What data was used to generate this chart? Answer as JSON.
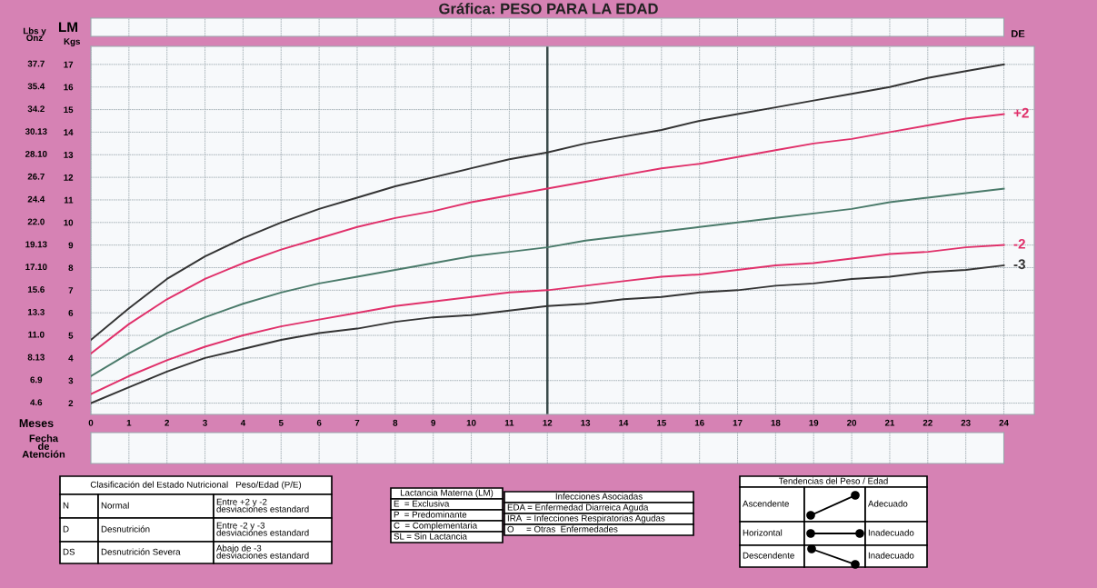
{
  "chart_data": {
    "type": "line",
    "title": "Gráfica: PESO PARA LA EDAD",
    "x": [
      0,
      1,
      2,
      3,
      4,
      5,
      6,
      7,
      8,
      9,
      10,
      11,
      12,
      13,
      14,
      15,
      16,
      17,
      18,
      19,
      20,
      21,
      22,
      23,
      24
    ],
    "series": [
      {
        "color": "#333333",
        "values": [
          4.8,
          6.2,
          7.5,
          8.5,
          9.3,
          10.0,
          10.6,
          11.1,
          11.6,
          12.0,
          12.4,
          12.8,
          13.1,
          13.5,
          13.8,
          14.1,
          14.5,
          14.8,
          15.1,
          15.4,
          15.7,
          16.0,
          16.4,
          16.7,
          17.0
        ]
      },
      {
        "name": "+2",
        "color": "#e0306a",
        "values": [
          4.2,
          5.5,
          6.6,
          7.5,
          8.2,
          8.8,
          9.3,
          9.8,
          10.2,
          10.5,
          10.9,
          11.2,
          11.5,
          11.8,
          12.1,
          12.4,
          12.6,
          12.9,
          13.2,
          13.5,
          13.7,
          14.0,
          14.3,
          14.6,
          14.8
        ]
      },
      {
        "color": "#4a7a6a",
        "values": [
          3.2,
          4.2,
          5.1,
          5.8,
          6.4,
          6.9,
          7.3,
          7.6,
          7.9,
          8.2,
          8.5,
          8.7,
          8.9,
          9.2,
          9.4,
          9.6,
          9.8,
          10.0,
          10.2,
          10.4,
          10.6,
          10.9,
          11.1,
          11.3,
          11.5
        ]
      },
      {
        "name": "-2",
        "color": "#e0306a",
        "values": [
          2.4,
          3.2,
          3.9,
          4.5,
          5.0,
          5.4,
          5.7,
          6.0,
          6.3,
          6.5,
          6.7,
          6.9,
          7.0,
          7.2,
          7.4,
          7.6,
          7.7,
          7.9,
          8.1,
          8.2,
          8.4,
          8.6,
          8.7,
          8.9,
          9.0
        ]
      },
      {
        "name": "-3",
        "color": "#333333",
        "values": [
          2.0,
          2.7,
          3.4,
          4.0,
          4.4,
          4.8,
          5.1,
          5.3,
          5.6,
          5.8,
          5.9,
          6.1,
          6.3,
          6.4,
          6.6,
          6.7,
          6.9,
          7.0,
          7.2,
          7.3,
          7.5,
          7.6,
          7.8,
          7.9,
          8.1
        ]
      }
    ],
    "xlabel": "Meses",
    "ylabel": "Kgs",
    "xlim": [
      0,
      24.8
    ],
    "xticks": [
      0,
      1,
      2,
      3,
      4,
      5,
      6,
      7,
      8,
      9,
      10,
      11,
      12,
      13,
      14,
      15,
      16,
      17,
      18,
      19,
      20,
      21,
      22,
      23,
      24
    ],
    "ylim": [
      1.5,
      17.8
    ],
    "yticks": [
      2,
      3,
      4,
      5,
      6,
      7,
      8,
      9,
      10,
      11,
      12,
      13,
      14,
      15,
      16,
      17
    ],
    "ref_lines": [
      {
        "axis": "x",
        "value": 12,
        "color": "#3a4a4a"
      }
    ],
    "grid": true,
    "marker": "none",
    "line_style": "solid",
    "annotations": [
      "LM",
      "DE",
      "Fecha\nde\nAtención",
      "Clasificación del Estado Nutricional   Peso/Edad (P/E)",
      "N",
      "Normal",
      "Entre +2 y -2\ndesviaciones estandard",
      "D",
      "Desnutrición",
      "Entre -2 y -3\ndesviaciones estandard",
      "DS",
      "Desnutrición Severa",
      "Abajo de -3\ndesviaciones estandard",
      "Lactancia Materna (LM)",
      "E  = Exclusiva",
      "P  = Predominante",
      "C  = Complementaria",
      "SL = Sin Lactancia",
      "Infecciones Asociadas",
      "EDA = Enfermedad Diarreica Aguda",
      "IRA  = Infecciones Respiratorias Agudas",
      "O     = Otras  Enfermedades",
      "Tendencias del Peso / Edad",
      "Ascendente",
      "Adecuado",
      "Horizontal",
      "Inadecuado",
      "Descendente",
      "Inadecuado",
      "Lbs y\nOnz",
      "4.6",
      "6.9",
      "8.13",
      "11.0",
      "13.3",
      "15.6",
      "17.10",
      "19.13",
      "22.0",
      "24.4",
      "26.7",
      "28.10",
      "30.13",
      "34.2",
      "35.4",
      "37.7"
    ]
  }
}
